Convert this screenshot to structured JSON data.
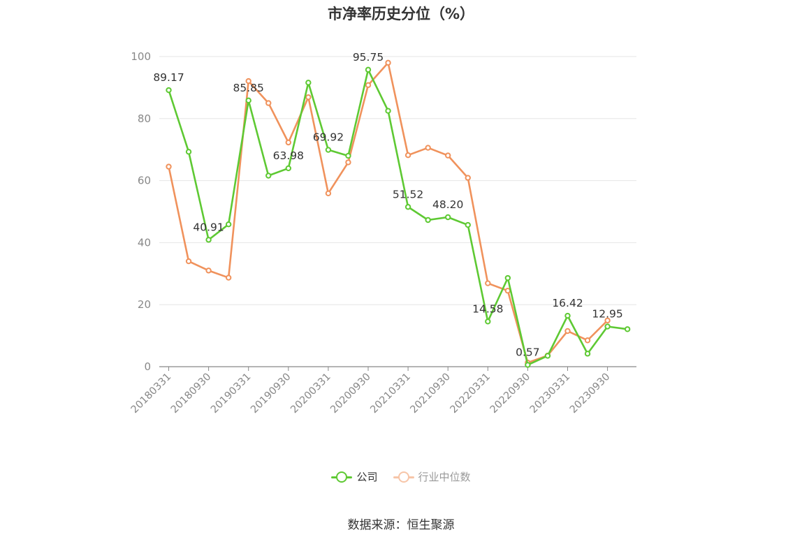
{
  "title": "市净率历史分位（%）",
  "source": "数据来源：恒生聚源",
  "colors": {
    "company": "#5ec933",
    "industry": "#f0925c",
    "axis": "#888888",
    "grid": "#e6e6e6"
  },
  "legend": {
    "company": "公司",
    "industry": "行业中位数"
  },
  "chart_data": {
    "type": "line",
    "ylim": [
      0,
      100
    ],
    "yticks": [
      0,
      20,
      40,
      60,
      80,
      100
    ],
    "x": [
      "20180331",
      "20180630",
      "20180930",
      "20181231",
      "20190331",
      "20190630",
      "20190930",
      "20191231",
      "20200331",
      "20200630",
      "20200930",
      "20201231",
      "20210331",
      "20210630",
      "20210930",
      "20211231",
      "20220331",
      "20220630",
      "20220930",
      "20221231",
      "20230331",
      "20230630",
      "20230930",
      "20231231"
    ],
    "xtick_labels": [
      "20180331",
      "20180930",
      "20190331",
      "20190930",
      "20200331",
      "20200930",
      "20210331",
      "20210930",
      "20220331",
      "20220930",
      "20230331",
      "20230930"
    ],
    "series": [
      {
        "name": "公司",
        "color": "#5ec933",
        "values": [
          89.17,
          69.3,
          40.91,
          45.9,
          85.85,
          61.6,
          63.98,
          91.6,
          69.92,
          68.0,
          95.75,
          82.5,
          51.52,
          47.3,
          48.2,
          45.7,
          14.58,
          28.6,
          0.57,
          3.5,
          16.42,
          4.2,
          12.95,
          12.1
        ],
        "labels": {
          "0": "89.17",
          "2": "40.91",
          "4": "85.85",
          "6": "63.98",
          "8": "69.92",
          "10": "95.75",
          "12": "51.52",
          "14": "48.20",
          "16": "14.58",
          "18": "0.57",
          "20": "16.42",
          "22": "12.95"
        }
      },
      {
        "name": "行业中位数",
        "color": "#f0925c",
        "values": [
          64.5,
          34.0,
          31.0,
          28.7,
          92.1,
          85.0,
          72.3,
          86.9,
          55.9,
          65.9,
          90.8,
          98.0,
          68.2,
          70.6,
          68.1,
          60.9,
          26.9,
          24.5,
          1.3,
          3.6,
          11.5,
          8.5,
          14.9,
          null
        ]
      }
    ]
  }
}
